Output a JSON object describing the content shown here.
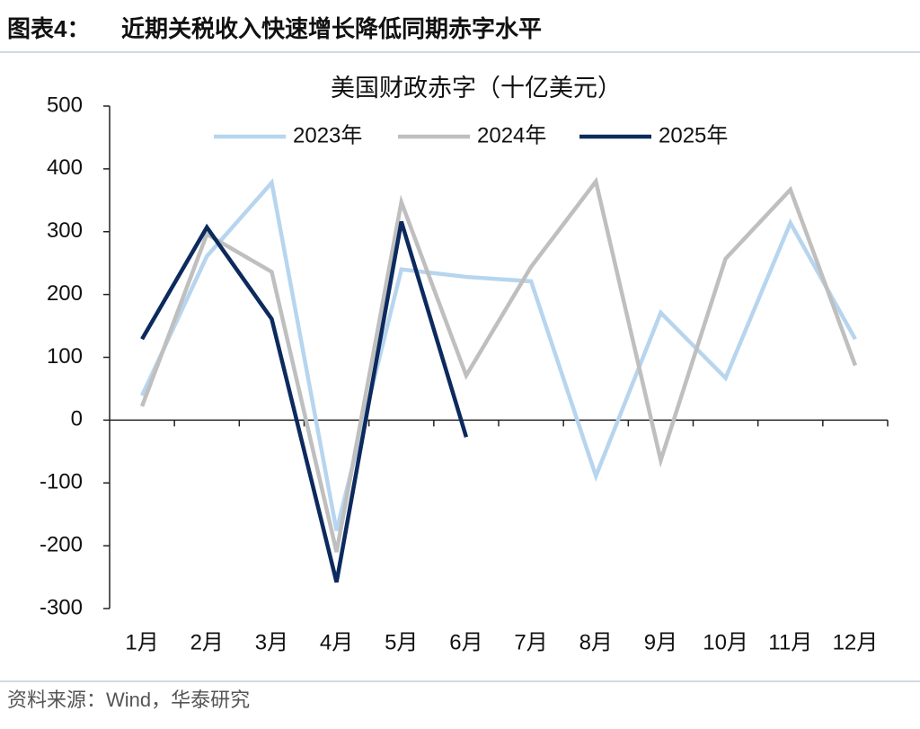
{
  "header": {
    "label": "图表4：",
    "title": "近期关税收入快速增长降低同期赤字水平"
  },
  "source": "资料来源：Wind，华泰研究",
  "chart_data": {
    "type": "line",
    "title": "美国财政赤字（十亿美元）",
    "categories": [
      "1月",
      "2月",
      "3月",
      "4月",
      "5月",
      "6月",
      "7月",
      "8月",
      "9月",
      "10月",
      "11月",
      "12月"
    ],
    "series": [
      {
        "name": "2023年",
        "color": "#b7d5ee",
        "values": [
          39,
          261,
          378,
          -176,
          240,
          228,
          221,
          -89,
          171,
          67,
          314,
          129
        ]
      },
      {
        "name": "2024年",
        "color": "#bfbfbf",
        "values": [
          22,
          296,
          236,
          -210,
          347,
          71,
          244,
          380,
          -64,
          257,
          367,
          87
        ]
      },
      {
        "name": "2025年",
        "color": "#0c2a5e",
        "values": [
          129,
          307,
          161,
          -258,
          316,
          -27,
          null,
          null,
          null,
          null,
          null,
          null
        ]
      }
    ],
    "ylim": [
      -300,
      500
    ],
    "yticks": [
      -300,
      -200,
      -100,
      0,
      100,
      200,
      300,
      400,
      500
    ],
    "grid": false,
    "legend": "top"
  }
}
